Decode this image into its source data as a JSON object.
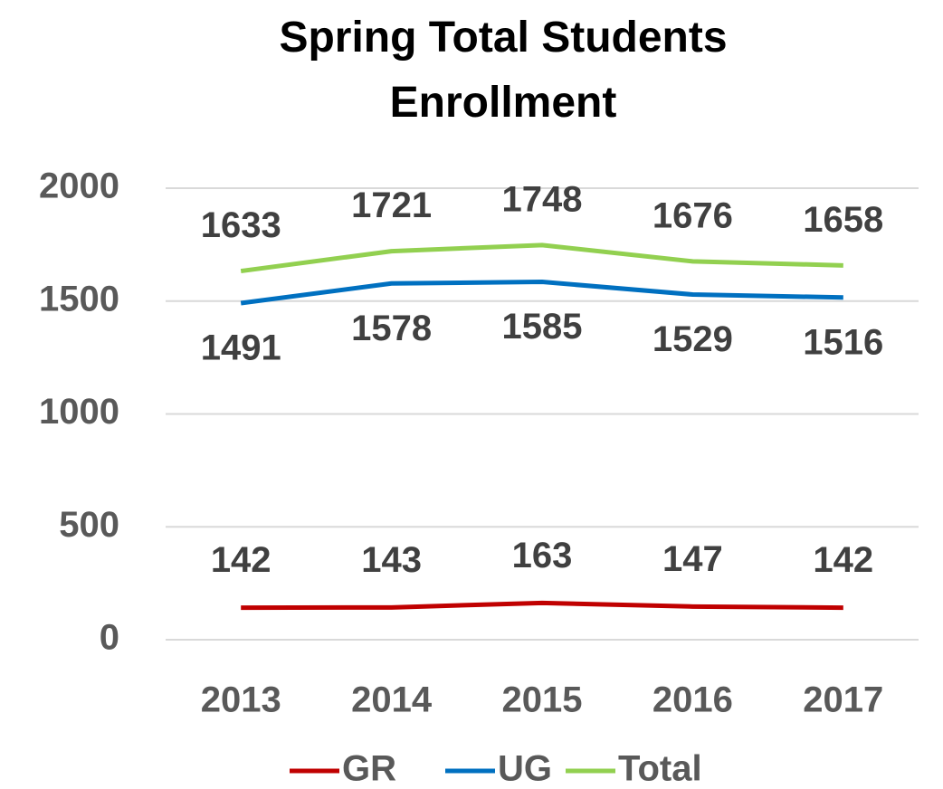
{
  "chart_data": {
    "type": "line",
    "title": "Spring Total Students Enrollment",
    "categories": [
      "2013",
      "2014",
      "2015",
      "2016",
      "2017"
    ],
    "series": [
      {
        "name": "GR",
        "color": "#c00000",
        "values": [
          142,
          143,
          163,
          147,
          142
        ]
      },
      {
        "name": "UG",
        "color": "#0070c0",
        "values": [
          1491,
          1578,
          1585,
          1529,
          1516
        ]
      },
      {
        "name": "Total",
        "color": "#92d050",
        "values": [
          1633,
          1721,
          1748,
          1676,
          1658
        ]
      }
    ],
    "ylim": [
      0,
      2000
    ],
    "yticks": [
      0,
      500,
      1000,
      1500,
      2000
    ],
    "grid": true,
    "legend": "bottom"
  }
}
